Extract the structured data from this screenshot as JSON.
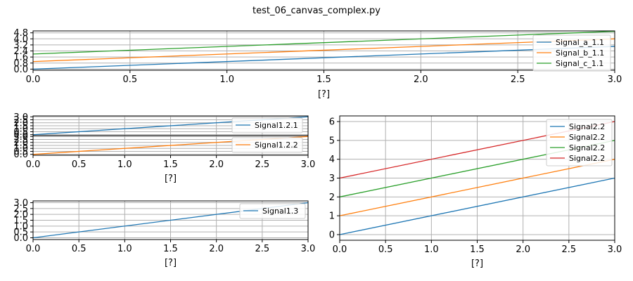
{
  "figure_title": "test_06_canvas_complex.py",
  "chart_data": [
    {
      "type": "line",
      "xlabel": "[?]",
      "ylabel": "",
      "xlim": [
        0,
        3
      ],
      "ylim": [
        -0.15,
        5.05
      ],
      "xticks": [
        "0.0",
        "0.5",
        "1.0",
        "1.5",
        "2.0",
        "2.5",
        "3.0"
      ],
      "yticks": [
        "0.0",
        "0.8",
        "1.6",
        "2.4",
        "3.2",
        "4.0",
        "4.8"
      ],
      "grid": true,
      "legend_position": "right",
      "series": [
        {
          "name": "Signal_a_1.1",
          "color": "#1f77b4",
          "x": [
            0,
            3
          ],
          "y": [
            0.0,
            3.0
          ]
        },
        {
          "name": "Signal_b_1.1",
          "color": "#ff7f0e",
          "x": [
            0,
            3
          ],
          "y": [
            1.0,
            4.0
          ]
        },
        {
          "name": "Signal_c_1.1",
          "color": "#2ca02c",
          "x": [
            0,
            3
          ],
          "y": [
            2.0,
            5.0
          ]
        }
      ]
    },
    {
      "type": "line",
      "xlabel": "",
      "ylabel": "",
      "xlim": [
        0,
        3
      ],
      "ylim": [
        -0.15,
        3.15
      ],
      "xticks": [
        "0.0",
        "0.5",
        "1.0",
        "1.5",
        "2.0",
        "2.5",
        "3.0"
      ],
      "yticks": [
        "0.0",
        "0.5",
        "1.0",
        "1.5",
        "2.0",
        "2.5",
        "3.0"
      ],
      "grid": true,
      "legend_position": "right",
      "series": [
        {
          "name": "Signal1.2.1",
          "color": "#1f77b4",
          "x": [
            0,
            3
          ],
          "y": [
            0.0,
            3.0
          ]
        }
      ]
    },
    {
      "type": "line",
      "xlabel": "[?]",
      "ylabel": "",
      "xlim": [
        0,
        3
      ],
      "ylim": [
        -0.15,
        3.15
      ],
      "xticks": [
        "0.0",
        "0.5",
        "1.0",
        "1.5",
        "2.0",
        "2.5",
        "3.0"
      ],
      "yticks": [
        "0.0",
        "0.5",
        "1.0",
        "1.5",
        "2.0",
        "2.5",
        "3.0"
      ],
      "grid": true,
      "legend_position": "right",
      "series": [
        {
          "name": "Signal1.2.2",
          "color": "#ff7f0e",
          "x": [
            0,
            3
          ],
          "y": [
            0.0,
            3.0
          ]
        }
      ]
    },
    {
      "type": "line",
      "xlabel": "[?]",
      "ylabel": "",
      "xlim": [
        0,
        3
      ],
      "ylim": [
        -0.15,
        3.15
      ],
      "xticks": [
        "0.0",
        "0.5",
        "1.0",
        "1.5",
        "2.0",
        "2.5",
        "3.0"
      ],
      "yticks": [
        "0.0",
        "0.5",
        "1.0",
        "1.5",
        "2.0",
        "2.5",
        "3.0"
      ],
      "grid": true,
      "legend_position": "top-right",
      "series": [
        {
          "name": "Signal1.3",
          "color": "#1f77b4",
          "x": [
            0,
            3
          ],
          "y": [
            0.0,
            3.0
          ]
        }
      ]
    },
    {
      "type": "line",
      "xlabel": "[?]",
      "ylabel": "",
      "xlim": [
        0,
        3
      ],
      "ylim": [
        -0.3,
        6.3
      ],
      "xticks": [
        "0.0",
        "0.5",
        "1.0",
        "1.5",
        "2.0",
        "2.5",
        "3.0"
      ],
      "yticks": [
        "0",
        "1",
        "2",
        "3",
        "4",
        "5",
        "6"
      ],
      "grid": true,
      "legend_position": "top-right",
      "series": [
        {
          "name": "Signal2.2",
          "color": "#1f77b4",
          "x": [
            0,
            3
          ],
          "y": [
            0.0,
            3.0
          ]
        },
        {
          "name": "Signal2.2",
          "color": "#ff7f0e",
          "x": [
            0,
            3
          ],
          "y": [
            1.0,
            4.0
          ]
        },
        {
          "name": "Signal2.2",
          "color": "#2ca02c",
          "x": [
            0,
            3
          ],
          "y": [
            2.0,
            5.0
          ]
        },
        {
          "name": "Signal2.2",
          "color": "#d62728",
          "x": [
            0,
            3
          ],
          "y": [
            3.0,
            6.0
          ]
        }
      ]
    }
  ]
}
